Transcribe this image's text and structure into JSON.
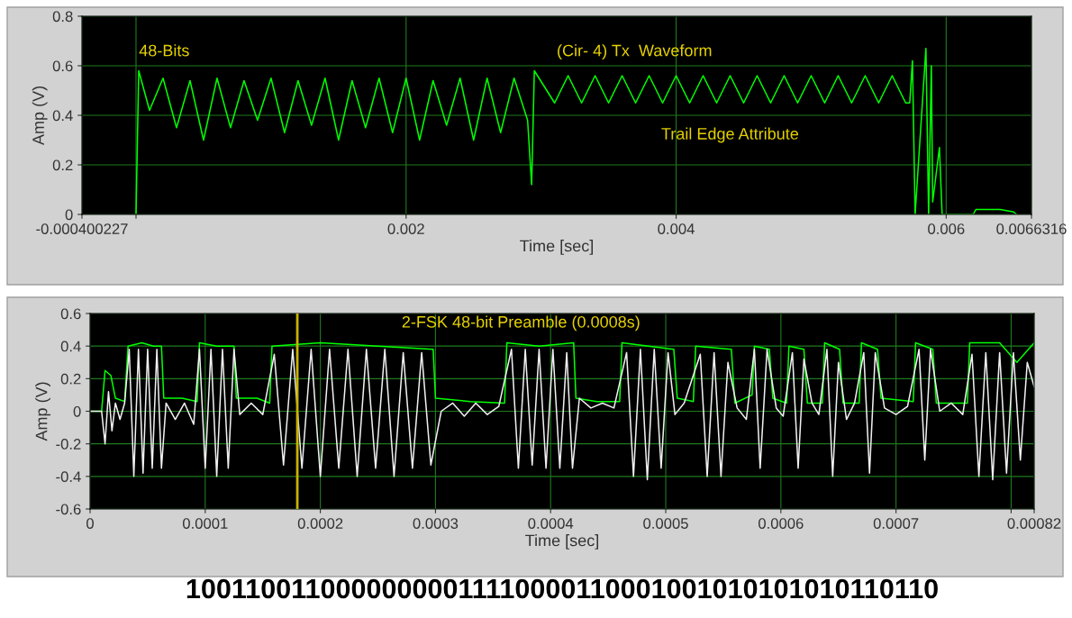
{
  "chart_data": [
    {
      "type": "line",
      "xlabel": "Time [sec]",
      "ylabel": "Amp (V)",
      "xlim": [
        -0.000400227,
        0.0066316
      ],
      "ylim": [
        0,
        0.8
      ],
      "xticks": [
        {
          "value": -0.000400227,
          "label": "-0.000400227"
        },
        {
          "value": 0,
          "label": null
        },
        {
          "value": 0.002,
          "label": "0.002"
        },
        {
          "value": 0.004,
          "label": "0.004"
        },
        {
          "value": 0.006,
          "label": "0.006"
        },
        {
          "value": 0.0066316,
          "label": "0.0066316"
        }
      ],
      "yticks": [
        {
          "value": 0,
          "label": "0"
        },
        {
          "value": 0.2,
          "label": "0.2"
        },
        {
          "value": 0.4,
          "label": "0.4"
        },
        {
          "value": 0.6,
          "label": "0.6"
        },
        {
          "value": 0.8,
          "label": "0.8"
        }
      ],
      "grid": true,
      "annotations": [
        "48-Bits",
        "(Cir- 4) Tx  Waveform",
        "Trail Edge Attribute"
      ],
      "series": [
        {
          "color": "#00ff00",
          "x": [
            0,
            2e-05,
            0.0001,
            0.0002,
            0.0003,
            0.0004,
            0.0005,
            0.0006,
            0.0007,
            0.0008,
            0.0009,
            0.001,
            0.0011,
            0.0012,
            0.0013,
            0.0014,
            0.0015,
            0.0016,
            0.0017,
            0.0018,
            0.0019,
            0.002,
            0.0021,
            0.0022,
            0.0023,
            0.0024,
            0.0025,
            0.0026,
            0.0027,
            0.0028,
            0.0029,
            0.00293,
            0.00295,
            0.0031,
            0.0032,
            0.0033,
            0.0034,
            0.0035,
            0.0036,
            0.0037,
            0.0038,
            0.0039,
            0.004,
            0.0041,
            0.0042,
            0.0043,
            0.0044,
            0.0045,
            0.0046,
            0.0047,
            0.0048,
            0.0049,
            0.005,
            0.0051,
            0.0052,
            0.0053,
            0.0054,
            0.0055,
            0.0056,
            0.0057,
            0.00573,
            0.00575,
            0.00577,
            0.00585,
            0.00587,
            0.00589,
            0.0059,
            0.00595,
            0.00597,
            0.0062,
            0.00622,
            0.0064,
            0.0065,
            0.00652
          ],
          "values": [
            0,
            0.58,
            0.42,
            0.55,
            0.35,
            0.54,
            0.3,
            0.55,
            0.35,
            0.54,
            0.38,
            0.55,
            0.33,
            0.54,
            0.36,
            0.55,
            0.3,
            0.54,
            0.35,
            0.55,
            0.33,
            0.55,
            0.3,
            0.54,
            0.36,
            0.55,
            0.3,
            0.55,
            0.33,
            0.55,
            0.38,
            0.12,
            0.58,
            0.45,
            0.56,
            0.45,
            0.56,
            0.45,
            0.56,
            0.45,
            0.56,
            0.45,
            0.56,
            0.45,
            0.56,
            0.45,
            0.56,
            0.45,
            0.56,
            0.45,
            0.56,
            0.45,
            0.56,
            0.45,
            0.56,
            0.45,
            0.56,
            0.45,
            0.56,
            0.45,
            0.45,
            0.62,
            0,
            0.67,
            0,
            0.6,
            0.05,
            0.27,
            0,
            0,
            0.02,
            0.02,
            0.01,
            0
          ]
        }
      ]
    },
    {
      "type": "line",
      "xlabel": "Time [sec]",
      "ylabel": "Amp (V)",
      "xlim": [
        0,
        0.00082
      ],
      "ylim": [
        -0.6,
        0.6
      ],
      "xticks": [
        {
          "value": 0,
          "label": "0"
        },
        {
          "value": 0.0001,
          "label": "0.0001"
        },
        {
          "value": 0.0002,
          "label": "0.0002"
        },
        {
          "value": 0.0003,
          "label": "0.0003"
        },
        {
          "value": 0.0004,
          "label": "0.0004"
        },
        {
          "value": 0.0005,
          "label": "0.0005"
        },
        {
          "value": 0.0006,
          "label": "0.0006"
        },
        {
          "value": 0.0007,
          "label": "0.0007"
        },
        {
          "value": 0.0008,
          "label": null
        },
        {
          "value": 0.00082,
          "label": "0.00082"
        }
      ],
      "yticks": [
        {
          "value": -0.6,
          "label": "-0.6"
        },
        {
          "value": -0.4,
          "label": "-0.4"
        },
        {
          "value": -0.2,
          "label": "-0.2"
        },
        {
          "value": 0,
          "label": "0"
        },
        {
          "value": 0.2,
          "label": "0.2"
        },
        {
          "value": 0.4,
          "label": "0.4"
        },
        {
          "value": 0.6,
          "label": "0.6"
        }
      ],
      "grid": true,
      "ref_lines": [
        {
          "axis": "x",
          "value": 0.00018,
          "color": "#c8b400"
        }
      ],
      "annotations": [
        "2-FSK 48-bit Preamble (0.0008s)",
        "10011001100000000011110000110001001010101010110110"
      ],
      "series": [
        {
          "color": "#00ff00",
          "x": [
            0,
            1e-05,
            1.3e-05,
            1.8e-05,
            2.2e-05,
            3e-05,
            3.3e-05,
            4.5e-05,
            5.5e-05,
            6.2e-05,
            6.4e-05,
            8e-05,
            9.3e-05,
            9.5e-05,
            0.00011,
            0.000125,
            0.000127,
            0.000145,
            0.000156,
            0.000158,
            0.0002,
            0.00025,
            0.000298,
            0.0003,
            0.00033,
            0.00036,
            0.000362,
            0.00039,
            0.00042,
            0.000422,
            0.00044,
            0.00046,
            0.000462,
            0.000485,
            0.000507,
            0.00051,
            0.000524,
            0.000526,
            0.000557,
            0.00056,
            0.000575,
            0.000577,
            0.00059,
            0.000593,
            0.000605,
            0.000607,
            0.00062,
            0.000623,
            0.000636,
            0.000638,
            0.000651,
            0.000654,
            0.000668,
            0.00067,
            0.000684,
            0.000687,
            0.000715,
            0.000717,
            0.000732,
            0.000735,
            0.000762,
            0.000764,
            0.00079,
            0.000805,
            0.000815,
            0.00082
          ],
          "values": [
            0,
            0,
            0.25,
            0.22,
            0.08,
            0.06,
            0.4,
            0.42,
            0.4,
            0.4,
            0.08,
            0.08,
            0.06,
            0.42,
            0.4,
            0.4,
            0.08,
            0.08,
            0.05,
            0.4,
            0.42,
            0.4,
            0.38,
            0.08,
            0.06,
            0.05,
            0.42,
            0.4,
            0.42,
            0.08,
            0.06,
            0.06,
            0.42,
            0.4,
            0.38,
            0.08,
            0.06,
            0.4,
            0.38,
            0.05,
            0.1,
            0.4,
            0.38,
            0.08,
            0.05,
            0.4,
            0.38,
            0.05,
            0.05,
            0.42,
            0.38,
            0.05,
            0.05,
            0.42,
            0.38,
            0.08,
            0.06,
            0.42,
            0.38,
            0.05,
            0.05,
            0.42,
            0.42,
            0.3,
            0.38,
            0.42
          ]
        },
        {
          "color": "#f0f0f0",
          "x": [
            0,
            1e-05,
            1.3e-05,
            1.6e-05,
            1.9e-05,
            2.2e-05,
            2.6e-05,
            3e-05,
            3.4e-05,
            3.8e-05,
            4.2e-05,
            4.6e-05,
            5e-05,
            5.4e-05,
            5.8e-05,
            6.2e-05,
            6.6e-05,
            7.4e-05,
            8.2e-05,
            9e-05,
            9.5e-05,
            0.0001,
            0.000105,
            0.00011,
            0.000115,
            0.00012,
            0.000125,
            0.00013,
            0.00014,
            0.00015,
            0.00016,
            0.000168,
            0.000176,
            0.000184,
            0.000192,
            0.0002,
            0.000208,
            0.000216,
            0.000224,
            0.000232,
            0.00024,
            0.000248,
            0.000256,
            0.000264,
            0.000272,
            0.00028,
            0.000288,
            0.000296,
            0.000305,
            0.000315,
            0.000325,
            0.000335,
            0.000345,
            0.000355,
            0.000366,
            0.000372,
            0.000378,
            0.000384,
            0.00039,
            0.000396,
            0.000402,
            0.000408,
            0.000414,
            0.000419,
            0.000425,
            0.000435,
            0.000445,
            0.000455,
            0.000466,
            0.000472,
            0.000478,
            0.000484,
            0.00049,
            0.000496,
            0.000502,
            0.000508,
            0.000516,
            0.00053,
            0.000536,
            0.000542,
            0.000548,
            0.000554,
            0.000562,
            0.00057,
            0.000577,
            0.000582,
            0.000588,
            0.000596,
            0.000602,
            0.00061,
            0.000615,
            0.00062,
            0.000627,
            0.000633,
            0.00064,
            0.000645,
            0.00065,
            0.000657,
            0.000664,
            0.000672,
            0.000677,
            0.000682,
            0.00069,
            0.0007,
            0.00071,
            0.00072,
            0.000725,
            0.00073,
            0.000738,
            0.000748,
            0.000758,
            0.000766,
            0.000772,
            0.000778,
            0.000784,
            0.00079,
            0.000796,
            0.000802,
            0.000808,
            0.000814,
            0.00082
          ],
          "values": [
            0,
            0,
            -0.2,
            0.12,
            -0.12,
            0.05,
            -0.05,
            0.05,
            0.38,
            -0.4,
            0.38,
            -0.38,
            0.38,
            -0.35,
            0.38,
            -0.35,
            0.05,
            -0.05,
            0.05,
            -0.08,
            0.38,
            -0.35,
            0.38,
            -0.4,
            0.38,
            -0.35,
            0.38,
            -0.02,
            0.05,
            -0.02,
            0.35,
            -0.33,
            0.38,
            -0.35,
            0.38,
            -0.4,
            0.38,
            -0.35,
            0.38,
            -0.4,
            0.38,
            -0.35,
            0.38,
            -0.4,
            0.36,
            -0.35,
            0.36,
            -0.33,
            0,
            0.05,
            -0.03,
            0.05,
            -0.02,
            0.03,
            0.38,
            -0.35,
            0.38,
            -0.33,
            0.38,
            -0.35,
            0.38,
            -0.35,
            0.36,
            -0.35,
            0.08,
            0.02,
            0.05,
            0.02,
            0.36,
            -0.4,
            0.38,
            -0.42,
            0.38,
            -0.35,
            0.36,
            -0.02,
            0.05,
            0.35,
            -0.4,
            0.36,
            -0.4,
            0.3,
            0.02,
            -0.05,
            0.38,
            -0.35,
            0.38,
            0.02,
            -0.03,
            0.36,
            -0.35,
            0.32,
            0.05,
            -0.02,
            0.38,
            -0.4,
            0.3,
            -0.05,
            0.05,
            0.36,
            -0.38,
            0.36,
            0.02,
            -0.02,
            0.03,
            0.38,
            -0.3,
            0.38,
            0,
            0.05,
            -0.02,
            0.35,
            -0.4,
            0.36,
            -0.42,
            0.36,
            -0.38,
            0.36,
            -0.3,
            0.3,
            0.15
          ]
        }
      ]
    }
  ]
}
